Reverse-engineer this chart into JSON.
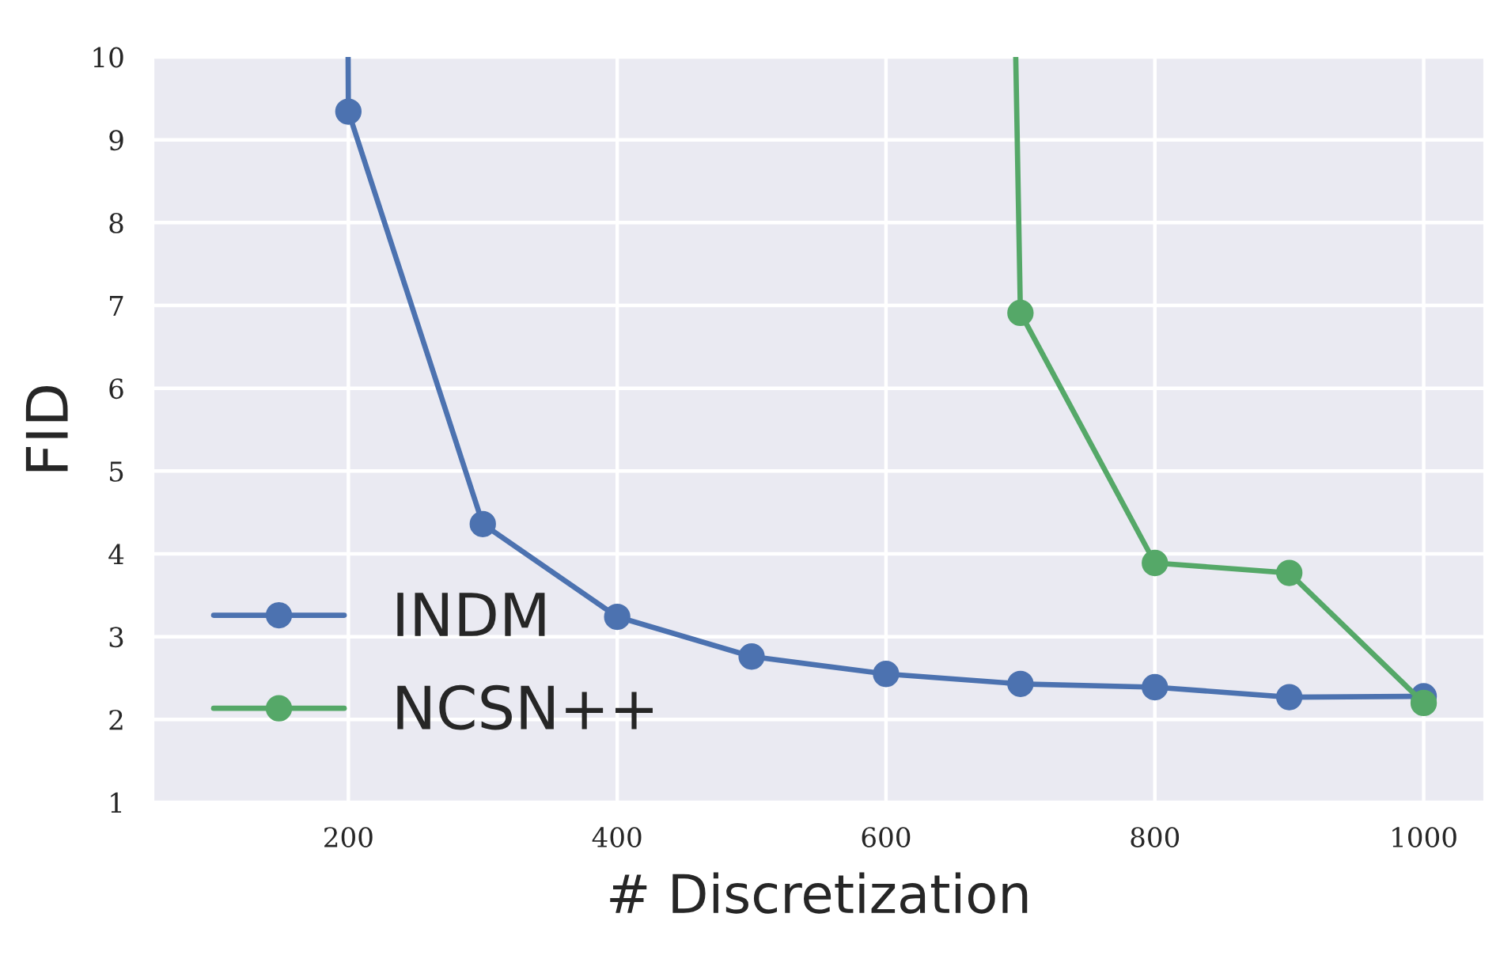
{
  "chart_data": {
    "type": "line",
    "xlabel": "# Discretization",
    "ylabel": "FID",
    "xlim": [
      55,
      1045
    ],
    "ylim": [
      1,
      10
    ],
    "xticks": [
      200,
      400,
      600,
      800,
      1000
    ],
    "yticks": [
      1,
      2,
      3,
      4,
      5,
      6,
      7,
      8,
      9,
      10
    ],
    "grid": true,
    "legend": "bottom left",
    "marker": "circle",
    "line_style": "solid",
    "series": [
      {
        "color": "#4c72b0",
        "x": [
          199.8,
          199.95
        ],
        "values": [
          10,
          9.5
        ],
        "marker": "none"
      },
      {
        "color": "#55a868",
        "x": [
          696.5,
          699.8
        ],
        "values": [
          10,
          7.06
        ],
        "marker": "none"
      },
      {
        "name": "INDM",
        "color": "#4c72b0",
        "x": [
          200,
          300,
          400,
          500,
          600,
          700,
          800,
          900,
          1000
        ],
        "values": [
          9.34,
          4.36,
          3.24,
          2.76,
          2.55,
          2.43,
          2.39,
          2.27,
          2.28
        ]
      },
      {
        "name": "NCSN++",
        "color": "#55a868",
        "x": [
          700,
          800,
          900,
          1000
        ],
        "values": [
          6.91,
          3.89,
          3.77,
          2.2
        ]
      }
    ]
  }
}
